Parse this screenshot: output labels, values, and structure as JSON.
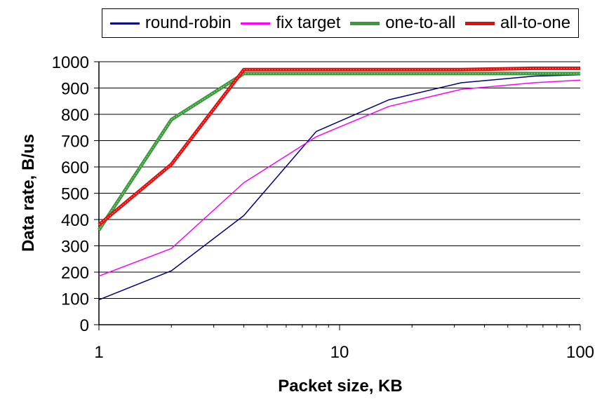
{
  "chart_data": {
    "type": "line",
    "x_scale": "log",
    "x": [
      1,
      2,
      4,
      8,
      16,
      32,
      64,
      100
    ],
    "xlabel": "Packet size, KB",
    "ylabel": "Data rate, B/us",
    "xlim": [
      1,
      100
    ],
    "ylim": [
      0,
      1000
    ],
    "x_ticks": [
      1,
      10,
      100
    ],
    "x_tick_labels": [
      "1",
      "10",
      "100"
    ],
    "y_ticks": [
      0,
      100,
      200,
      300,
      400,
      500,
      600,
      700,
      800,
      900,
      1000
    ],
    "y_tick_labels": [
      "0",
      "100",
      "200",
      "300",
      "400",
      "500",
      "600",
      "700",
      "800",
      "900",
      "1000"
    ],
    "grid": "horizontal",
    "legend_position": "top",
    "series": [
      {
        "name": "round-robin",
        "color": "#00007f",
        "values": [
          95,
          205,
          415,
          735,
          855,
          920,
          945,
          950
        ]
      },
      {
        "name": "fix target",
        "color": "#ff00ff",
        "values": [
          185,
          290,
          540,
          715,
          830,
          895,
          920,
          930
        ]
      },
      {
        "name": "one-to-all",
        "color": "#3c9a3c",
        "values": [
          360,
          780,
          955,
          955,
          955,
          955,
          955,
          955
        ]
      },
      {
        "name": "all-to-one",
        "color": "#e01010",
        "values": [
          380,
          610,
          970,
          970,
          970,
          970,
          975,
          975
        ]
      }
    ]
  }
}
